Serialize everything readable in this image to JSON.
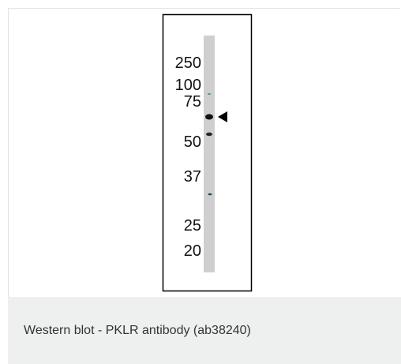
{
  "figure": {
    "markers": [
      "250",
      "100",
      "75",
      "50",
      "37",
      "25",
      "20"
    ]
  },
  "caption": "Western blot - PKLR antibody (ab38240)"
}
